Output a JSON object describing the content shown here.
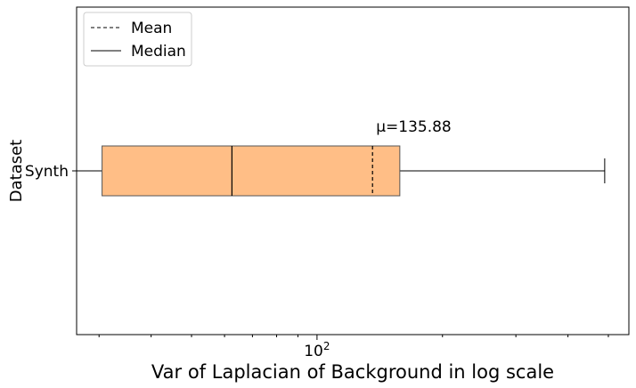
{
  "chart_data": {
    "type": "box",
    "orientation": "horizontal",
    "xscale": "log",
    "xlim": [
      26.5,
      560
    ],
    "xlabel": "Var of Laplacian of Background in log scale",
    "ylabel": "Dataset",
    "categories": [
      "Synth"
    ],
    "x_ticks": [
      {
        "value": 100,
        "base": "10",
        "exponent": "2"
      }
    ],
    "boxes": [
      {
        "category": "Synth",
        "whisker_low": 25,
        "q1": 30.5,
        "median": 62.5,
        "mean": 135.88,
        "q3": 158,
        "whisker_high": 490,
        "mean_label": "μ=135.88",
        "color": "#ffbe86"
      }
    ],
    "legend": {
      "position": "top-left",
      "entries": [
        {
          "label": "Mean",
          "style": "dashed"
        },
        {
          "label": "Median",
          "style": "solid"
        }
      ]
    },
    "grid": false
  }
}
